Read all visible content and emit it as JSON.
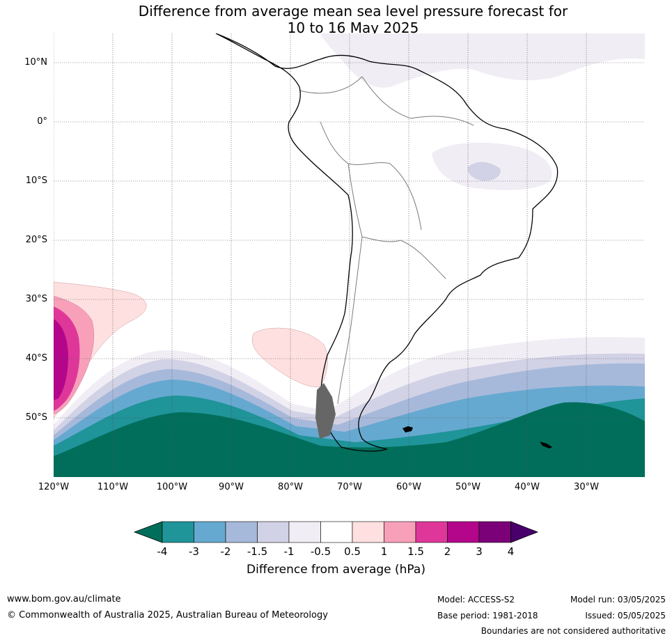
{
  "title_line1": "Difference from average mean sea level pressure forecast for",
  "title_line2": "10 to 16 May 2025",
  "latitude_labels": [
    "10°N",
    "0°",
    "10°S",
    "20°S",
    "30°S",
    "40°S",
    "50°S"
  ],
  "longitude_labels": [
    "120°W",
    "110°W",
    "100°W",
    "90°W",
    "80°W",
    "70°W",
    "60°W",
    "50°W",
    "40°W",
    "30°W"
  ],
  "colorbar": {
    "tick_labels": [
      "-4",
      "-3",
      "-2",
      "-1.5",
      "-1",
      "-0.5",
      "0.5",
      "1",
      "1.5",
      "2",
      "3",
      "4"
    ],
    "title": "Difference from average (hPa)",
    "colors": [
      "#006e5a",
      "#1f9499",
      "#66a9d0",
      "#a7b9da",
      "#d2d2e6",
      "#f1edf5",
      "#ffffff",
      "#fee0e0",
      "#f8a0ba",
      "#de3799",
      "#b3068a",
      "#7b0179",
      "#49006a"
    ]
  },
  "footer": {
    "website": "www.bom.gov.au/climate",
    "copyright": "© Commonwealth of Australia 2025, Australian Bureau of Meteorology",
    "model": "Model: ACCESS-S2",
    "base_period": "Base period: 1981-2018",
    "model_run": "Model run: 03/05/2025",
    "issued": "Issued: 05/05/2025",
    "disclaimer": "Boundaries are not considered authoritative"
  }
}
